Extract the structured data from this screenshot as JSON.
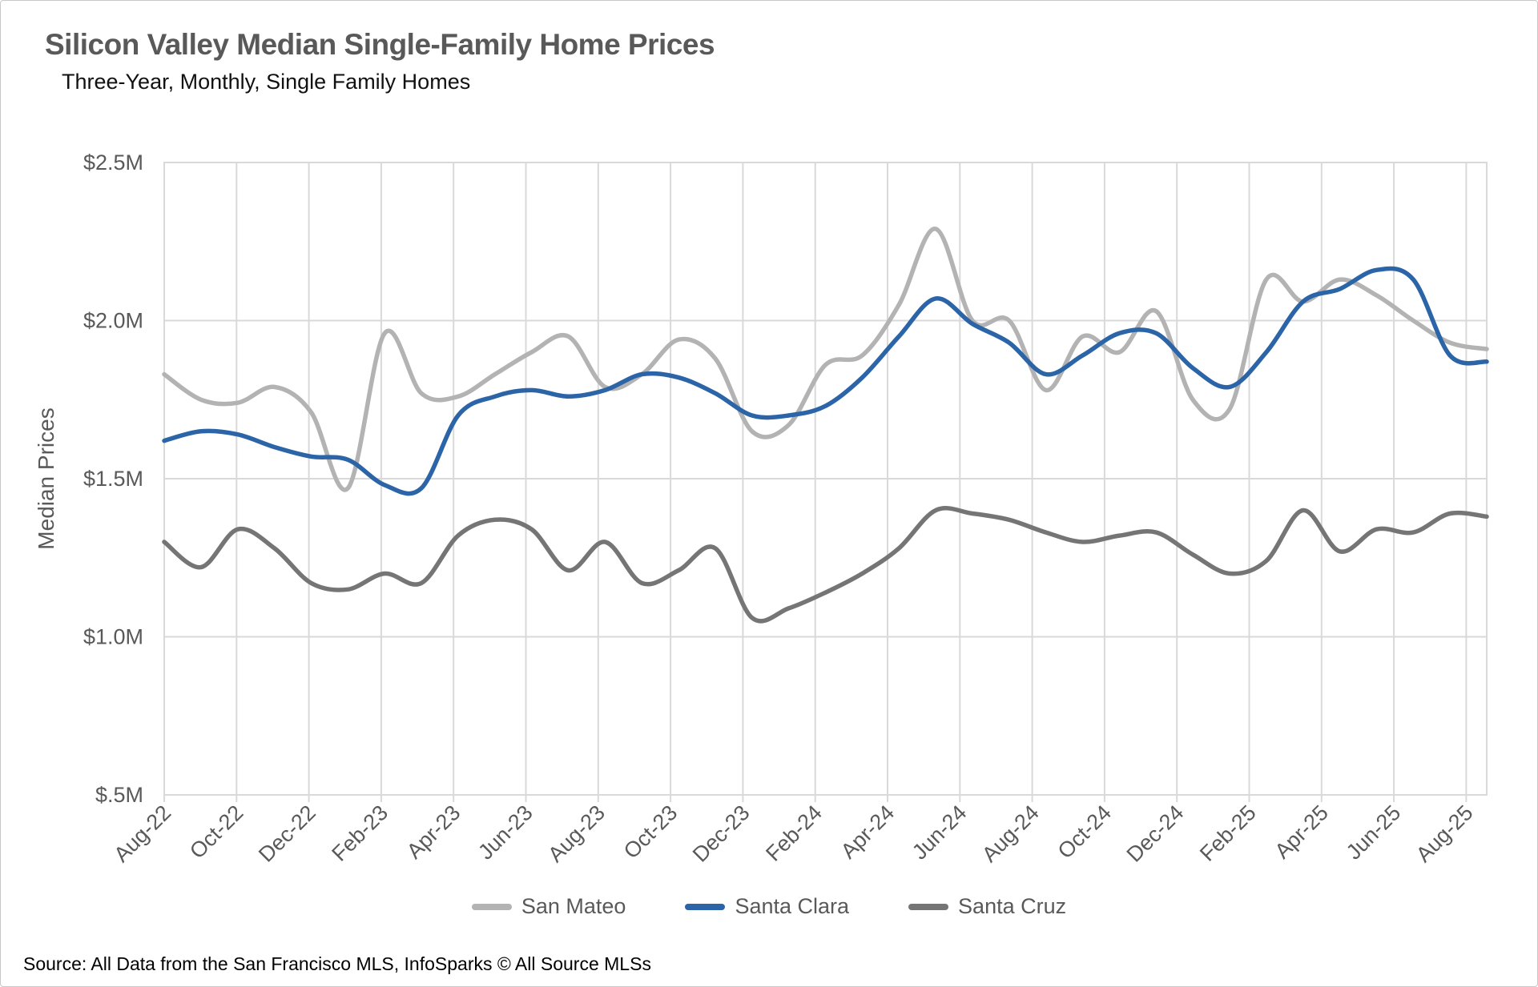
{
  "page": {
    "title": "Silicon Valley Median Single-Family Home Prices",
    "subtitle": "Three-Year, Monthly, Single Family Homes",
    "source": "Source: All Data from the San Francisco MLS, InfoSparks © All Source MLSs"
  },
  "chart_data": {
    "type": "line",
    "title": "Silicon Valley Median Single-Family Home Prices",
    "subtitle": "Three-Year, Monthly, Single Family Homes",
    "xlabel": "",
    "ylabel": "Median Prices",
    "units": "millions USD",
    "ylim": [
      0.5,
      2.5
    ],
    "grid": true,
    "legend_position": "bottom",
    "y_ticks": [
      {
        "value": 2.5,
        "label": "$2.5M"
      },
      {
        "value": 2.0,
        "label": "$2.0M"
      },
      {
        "value": 1.5,
        "label": "$1.5M"
      },
      {
        "value": 1.0,
        "label": "$1.0M"
      },
      {
        "value": 0.5,
        "label": "$.5M"
      }
    ],
    "x": [
      "Aug-22",
      "Sep-22",
      "Oct-22",
      "Nov-22",
      "Dec-22",
      "Jan-23",
      "Feb-23",
      "Mar-23",
      "Apr-23",
      "May-23",
      "Jun-23",
      "Jul-23",
      "Aug-23",
      "Sep-23",
      "Oct-23",
      "Nov-23",
      "Dec-23",
      "Jan-24",
      "Feb-24",
      "Mar-24",
      "Apr-24",
      "May-24",
      "Jun-24",
      "Jul-24",
      "Aug-24",
      "Sep-24",
      "Oct-24",
      "Nov-24",
      "Dec-24",
      "Jan-25",
      "Feb-25",
      "Mar-25",
      "Apr-25",
      "May-25",
      "Jun-25",
      "Jul-25",
      "Aug-25"
    ],
    "x_tick_every": 2,
    "series": [
      {
        "name": "San Mateo",
        "color": "#b3b3b3",
        "values": [
          1.83,
          1.75,
          1.74,
          1.79,
          1.71,
          1.47,
          1.96,
          1.77,
          1.76,
          1.83,
          1.9,
          1.95,
          1.79,
          1.83,
          1.94,
          1.88,
          1.65,
          1.67,
          1.86,
          1.89,
          2.05,
          2.29,
          2.0,
          2.0,
          1.78,
          1.95,
          1.9,
          2.03,
          1.75,
          1.72,
          2.13,
          2.06,
          2.13,
          2.08,
          2.0,
          1.93,
          1.91
        ]
      },
      {
        "name": "Santa Clara",
        "color": "#2b64a7",
        "values": [
          1.62,
          1.65,
          1.64,
          1.6,
          1.57,
          1.56,
          1.48,
          1.47,
          1.7,
          1.76,
          1.78,
          1.76,
          1.78,
          1.83,
          1.82,
          1.77,
          1.7,
          1.7,
          1.73,
          1.82,
          1.95,
          2.07,
          1.99,
          1.93,
          1.83,
          1.89,
          1.96,
          1.96,
          1.85,
          1.79,
          1.9,
          2.06,
          2.1,
          2.16,
          2.13,
          1.89,
          1.87
        ]
      },
      {
        "name": "Santa Cruz",
        "color": "#757575",
        "values": [
          1.3,
          1.22,
          1.34,
          1.28,
          1.17,
          1.15,
          1.2,
          1.17,
          1.32,
          1.37,
          1.34,
          1.21,
          1.3,
          1.17,
          1.21,
          1.28,
          1.06,
          1.09,
          1.14,
          1.2,
          1.28,
          1.4,
          1.39,
          1.37,
          1.33,
          1.3,
          1.32,
          1.33,
          1.26,
          1.2,
          1.24,
          1.4,
          1.27,
          1.34,
          1.33,
          1.39,
          1.38
        ]
      }
    ]
  }
}
